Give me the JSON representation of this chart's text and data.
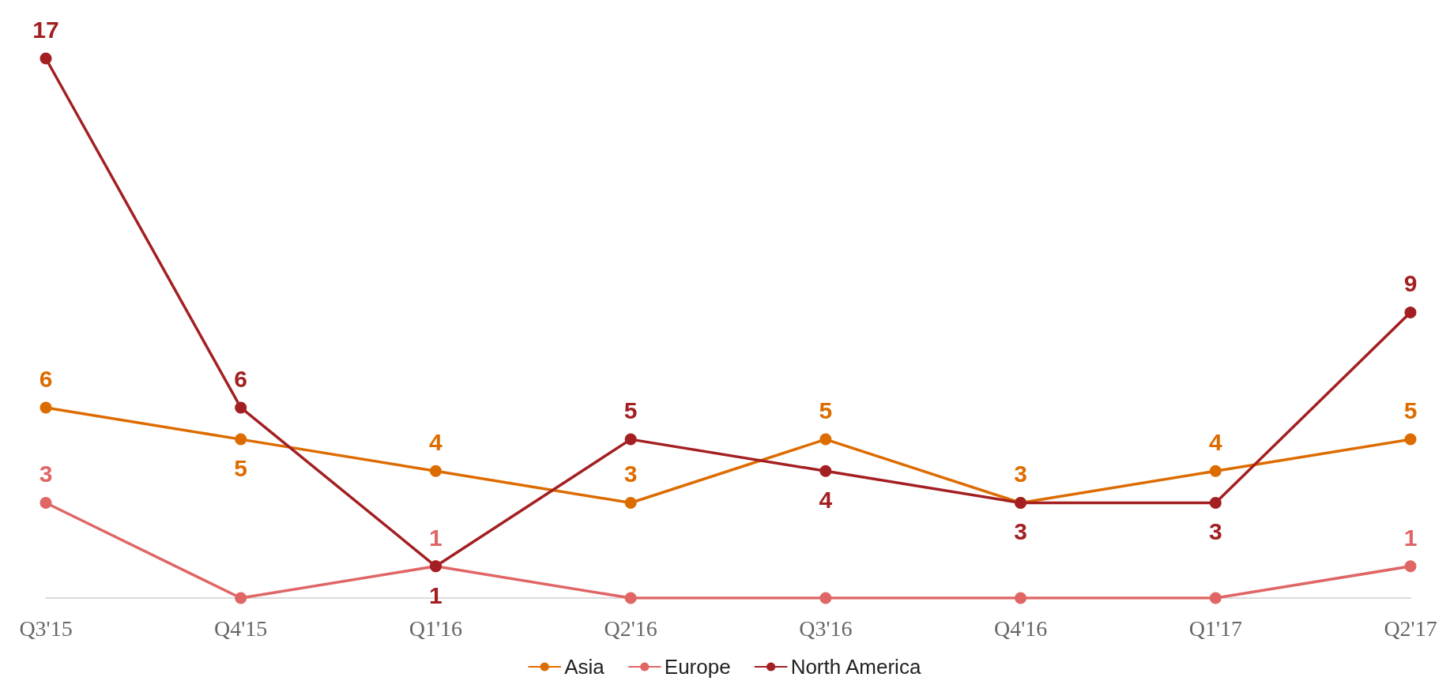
{
  "chart_data": {
    "type": "line",
    "categories": [
      "Q3'15",
      "Q4'15",
      "Q1'16",
      "Q2'16",
      "Q3'16",
      "Q4'16",
      "Q1'17",
      "Q2'17"
    ],
    "series": [
      {
        "name": "Asia",
        "color": "#dd6c00",
        "values": [
          6,
          5,
          4,
          3,
          5,
          3,
          4,
          5
        ],
        "value_labels": [
          "6",
          "5",
          "4",
          "3",
          "5",
          "3",
          "4",
          "5"
        ]
      },
      {
        "name": "Europe",
        "color": "#e06666",
        "values": [
          3,
          0,
          1,
          0,
          0,
          0,
          0,
          1
        ],
        "value_labels": [
          "3",
          null,
          "1",
          null,
          null,
          null,
          null,
          "1"
        ]
      },
      {
        "name": "North America",
        "color": "#a31f22",
        "values": [
          17,
          6,
          1,
          5,
          4,
          3,
          3,
          9
        ],
        "value_labels": [
          "17",
          "6",
          "1",
          "5",
          "4",
          "3",
          "3",
          "9"
        ]
      }
    ],
    "tick_labels": "x",
    "grid": false,
    "legend": "bottom",
    "marker": "circle",
    "line_style": "solid"
  }
}
